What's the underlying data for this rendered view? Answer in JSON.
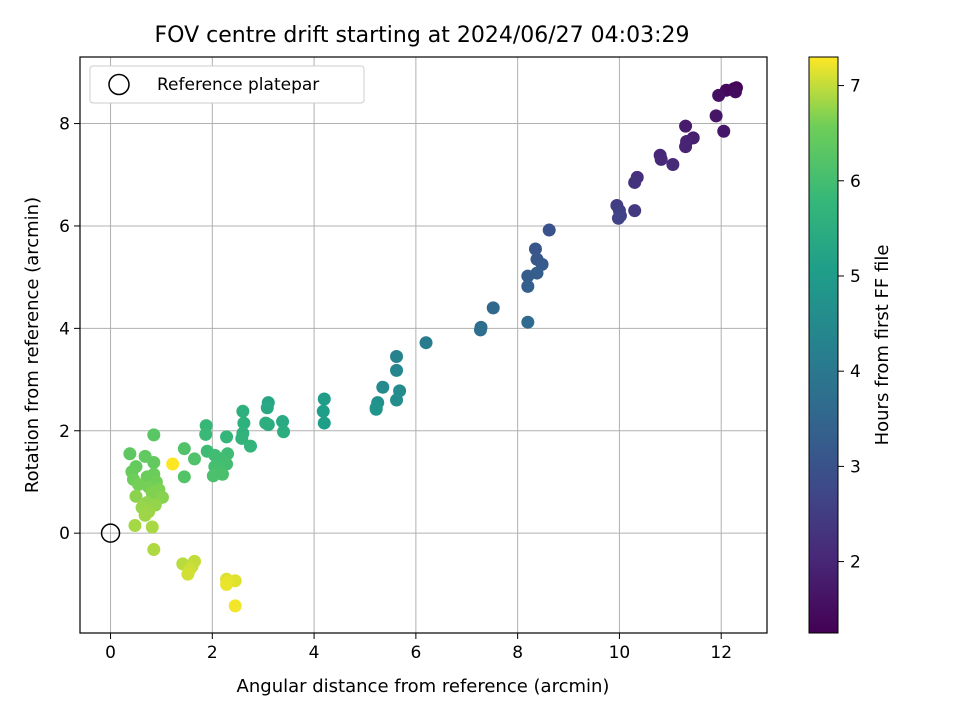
{
  "chart_data": {
    "type": "scatter",
    "title": "FOV centre drift starting at 2024/06/27 04:03:29",
    "xlabel": "Angular distance from reference (arcmin)",
    "ylabel": "Rotation from reference (arcmin)",
    "xlim": [
      -0.6,
      12.9
    ],
    "ylim": [
      -1.95,
      9.3
    ],
    "x_ticks": [
      0,
      2,
      4,
      6,
      8,
      10,
      12
    ],
    "y_ticks": [
      0,
      2,
      4,
      6,
      8
    ],
    "grid": true,
    "legend": {
      "placement": "top-left",
      "entries": [
        "Reference platepar"
      ]
    },
    "reference_point": {
      "x": 0,
      "y": 0,
      "label": "Reference platepar"
    },
    "colorbar": {
      "label": "Hours from first FF file",
      "range": [
        1.25,
        7.3
      ],
      "ticks": [
        2,
        3,
        4,
        5,
        6,
        7
      ],
      "colormap": "viridis"
    },
    "points": [
      {
        "x": 12.3,
        "y": 8.7,
        "c": 1.3
      },
      {
        "x": 12.25,
        "y": 8.68,
        "c": 1.35
      },
      {
        "x": 12.1,
        "y": 8.65,
        "c": 1.4
      },
      {
        "x": 12.28,
        "y": 8.62,
        "c": 1.45
      },
      {
        "x": 11.95,
        "y": 8.55,
        "c": 1.55
      },
      {
        "x": 11.9,
        "y": 8.15,
        "c": 1.65
      },
      {
        "x": 12.05,
        "y": 7.85,
        "c": 1.7
      },
      {
        "x": 11.3,
        "y": 7.95,
        "c": 1.8
      },
      {
        "x": 11.45,
        "y": 7.72,
        "c": 1.85
      },
      {
        "x": 11.32,
        "y": 7.65,
        "c": 1.9
      },
      {
        "x": 11.3,
        "y": 7.55,
        "c": 1.95
      },
      {
        "x": 10.8,
        "y": 7.38,
        "c": 2.0
      },
      {
        "x": 10.82,
        "y": 7.3,
        "c": 2.05
      },
      {
        "x": 11.05,
        "y": 7.2,
        "c": 2.1
      },
      {
        "x": 10.35,
        "y": 6.95,
        "c": 2.2
      },
      {
        "x": 10.3,
        "y": 6.85,
        "c": 2.25
      },
      {
        "x": 10.3,
        "y": 6.3,
        "c": 2.4
      },
      {
        "x": 9.95,
        "y": 6.4,
        "c": 2.5
      },
      {
        "x": 10.0,
        "y": 6.3,
        "c": 2.55
      },
      {
        "x": 10.02,
        "y": 6.2,
        "c": 2.6
      },
      {
        "x": 9.98,
        "y": 6.15,
        "c": 2.65
      },
      {
        "x": 8.62,
        "y": 5.92,
        "c": 3.0
      },
      {
        "x": 8.35,
        "y": 5.55,
        "c": 3.1
      },
      {
        "x": 8.38,
        "y": 5.35,
        "c": 3.15
      },
      {
        "x": 8.48,
        "y": 5.25,
        "c": 3.2
      },
      {
        "x": 8.2,
        "y": 5.02,
        "c": 3.25
      },
      {
        "x": 8.38,
        "y": 5.08,
        "c": 3.3
      },
      {
        "x": 8.2,
        "y": 4.82,
        "c": 3.35
      },
      {
        "x": 7.52,
        "y": 4.4,
        "c": 3.55
      },
      {
        "x": 8.2,
        "y": 4.12,
        "c": 3.6
      },
      {
        "x": 7.28,
        "y": 4.02,
        "c": 3.7
      },
      {
        "x": 7.27,
        "y": 3.97,
        "c": 3.75
      },
      {
        "x": 6.2,
        "y": 3.72,
        "c": 4.1
      },
      {
        "x": 5.62,
        "y": 3.45,
        "c": 4.3
      },
      {
        "x": 5.62,
        "y": 3.18,
        "c": 4.4
      },
      {
        "x": 5.35,
        "y": 2.85,
        "c": 4.5
      },
      {
        "x": 5.68,
        "y": 2.78,
        "c": 4.55
      },
      {
        "x": 5.62,
        "y": 2.6,
        "c": 4.6
      },
      {
        "x": 5.25,
        "y": 2.55,
        "c": 4.7
      },
      {
        "x": 5.22,
        "y": 2.45,
        "c": 4.75
      },
      {
        "x": 5.22,
        "y": 2.42,
        "c": 4.8
      },
      {
        "x": 4.2,
        "y": 2.62,
        "c": 5.0
      },
      {
        "x": 4.18,
        "y": 2.38,
        "c": 5.05
      },
      {
        "x": 4.2,
        "y": 2.15,
        "c": 5.1
      },
      {
        "x": 3.1,
        "y": 2.55,
        "c": 5.3
      },
      {
        "x": 3.08,
        "y": 2.45,
        "c": 5.35
      },
      {
        "x": 3.38,
        "y": 2.18,
        "c": 5.4
      },
      {
        "x": 3.1,
        "y": 2.12,
        "c": 5.45
      },
      {
        "x": 3.4,
        "y": 1.98,
        "c": 5.5
      },
      {
        "x": 3.05,
        "y": 2.15,
        "c": 5.52
      },
      {
        "x": 2.6,
        "y": 2.38,
        "c": 5.55
      },
      {
        "x": 2.62,
        "y": 2.15,
        "c": 5.6
      },
      {
        "x": 2.6,
        "y": 1.95,
        "c": 5.65
      },
      {
        "x": 2.58,
        "y": 1.85,
        "c": 5.68
      },
      {
        "x": 2.75,
        "y": 1.7,
        "c": 5.7
      },
      {
        "x": 2.28,
        "y": 1.88,
        "c": 5.75
      },
      {
        "x": 1.88,
        "y": 2.1,
        "c": 5.8
      },
      {
        "x": 1.87,
        "y": 1.93,
        "c": 5.85
      },
      {
        "x": 1.9,
        "y": 1.6,
        "c": 5.9
      },
      {
        "x": 2.3,
        "y": 1.55,
        "c": 5.92
      },
      {
        "x": 2.05,
        "y": 1.52,
        "c": 5.95
      },
      {
        "x": 2.15,
        "y": 1.45,
        "c": 5.97
      },
      {
        "x": 2.28,
        "y": 1.35,
        "c": 6.0
      },
      {
        "x": 2.05,
        "y": 1.3,
        "c": 6.02
      },
      {
        "x": 2.1,
        "y": 1.22,
        "c": 6.05
      },
      {
        "x": 2.2,
        "y": 1.15,
        "c": 6.08
      },
      {
        "x": 2.02,
        "y": 1.12,
        "c": 6.1
      },
      {
        "x": 1.65,
        "y": 1.45,
        "c": 6.15
      },
      {
        "x": 1.45,
        "y": 1.65,
        "c": 6.18
      },
      {
        "x": 1.45,
        "y": 1.1,
        "c": 6.2
      },
      {
        "x": 0.85,
        "y": 1.92,
        "c": 6.3
      },
      {
        "x": 0.38,
        "y": 1.55,
        "c": 6.35
      },
      {
        "x": 0.68,
        "y": 1.5,
        "c": 6.4
      },
      {
        "x": 0.85,
        "y": 1.38,
        "c": 6.42
      },
      {
        "x": 0.5,
        "y": 1.3,
        "c": 6.45
      },
      {
        "x": 0.42,
        "y": 1.2,
        "c": 6.48
      },
      {
        "x": 0.85,
        "y": 1.15,
        "c": 6.5
      },
      {
        "x": 0.72,
        "y": 1.1,
        "c": 6.52
      },
      {
        "x": 0.45,
        "y": 1.05,
        "c": 6.55
      },
      {
        "x": 0.9,
        "y": 1.0,
        "c": 6.57
      },
      {
        "x": 0.55,
        "y": 0.95,
        "c": 6.6
      },
      {
        "x": 0.75,
        "y": 0.9,
        "c": 6.62
      },
      {
        "x": 0.95,
        "y": 0.85,
        "c": 6.65
      },
      {
        "x": 0.82,
        "y": 0.78,
        "c": 6.67
      },
      {
        "x": 1.02,
        "y": 0.7,
        "c": 6.7
      },
      {
        "x": 0.5,
        "y": 0.72,
        "c": 6.72
      },
      {
        "x": 0.72,
        "y": 0.6,
        "c": 6.74
      },
      {
        "x": 0.88,
        "y": 0.55,
        "c": 6.76
      },
      {
        "x": 0.62,
        "y": 0.5,
        "c": 6.78
      },
      {
        "x": 0.75,
        "y": 0.42,
        "c": 6.8
      },
      {
        "x": 0.68,
        "y": 0.35,
        "c": 6.82
      },
      {
        "x": 0.48,
        "y": 0.15,
        "c": 6.85
      },
      {
        "x": 0.82,
        "y": 0.12,
        "c": 6.87
      },
      {
        "x": 0.85,
        "y": -0.32,
        "c": 6.9
      },
      {
        "x": 1.42,
        "y": -0.6,
        "c": 6.95
      },
      {
        "x": 1.65,
        "y": -0.55,
        "c": 7.0
      },
      {
        "x": 1.6,
        "y": -0.65,
        "c": 7.02
      },
      {
        "x": 1.55,
        "y": -0.72,
        "c": 7.05
      },
      {
        "x": 1.52,
        "y": -0.8,
        "c": 7.08
      },
      {
        "x": 2.28,
        "y": -0.9,
        "c": 7.12
      },
      {
        "x": 2.45,
        "y": -0.93,
        "c": 7.15
      },
      {
        "x": 2.3,
        "y": -0.95,
        "c": 7.18
      },
      {
        "x": 2.28,
        "y": -1.0,
        "c": 7.2
      },
      {
        "x": 2.45,
        "y": -1.42,
        "c": 7.25
      },
      {
        "x": 1.22,
        "y": 1.35,
        "c": 7.3
      }
    ]
  }
}
